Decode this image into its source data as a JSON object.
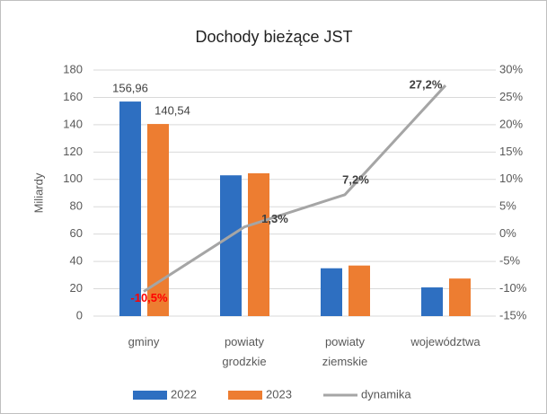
{
  "chart_data": {
    "type": "bar_line",
    "title": "Dochody bieżące JST",
    "ylabel": "Miliardy",
    "categories": [
      "gminy",
      "powiaty grodzkie",
      "powiaty ziemskie",
      "województwa"
    ],
    "series": [
      {
        "name": "2022",
        "color": "#2e6fc1",
        "values": [
          156.96,
          103,
          35,
          21
        ],
        "value_labels": [
          "156,96",
          null,
          null,
          null
        ]
      },
      {
        "name": "2023",
        "color": "#ed7d31",
        "values": [
          140.54,
          104.5,
          37,
          27.5
        ],
        "value_labels": [
          "140,54",
          null,
          null,
          null
        ]
      },
      {
        "name": "dynamika",
        "color": "#a5a5a5",
        "axis": "y2",
        "values": [
          -10.5,
          1.3,
          7.2,
          27.2
        ],
        "value_labels": [
          "-10,5%",
          "1,3%",
          "7,2%",
          "27,2%"
        ]
      }
    ],
    "ylim": [
      0,
      180
    ],
    "yticks": [
      0,
      20,
      40,
      60,
      80,
      100,
      120,
      140,
      160,
      180
    ],
    "y2lim": [
      -15,
      30
    ],
    "y2ticks": [
      {
        "value": -15,
        "label": "-15%"
      },
      {
        "value": -10,
        "label": "-10%"
      },
      {
        "value": -5,
        "label": "-5%"
      },
      {
        "value": 0,
        "label": "0%"
      },
      {
        "value": 5,
        "label": "5%"
      },
      {
        "value": 10,
        "label": "10%"
      },
      {
        "value": 15,
        "label": "15%"
      },
      {
        "value": 20,
        "label": "20%"
      },
      {
        "value": 25,
        "label": "25%"
      },
      {
        "value": 30,
        "label": "30%"
      }
    ],
    "grid": true
  }
}
